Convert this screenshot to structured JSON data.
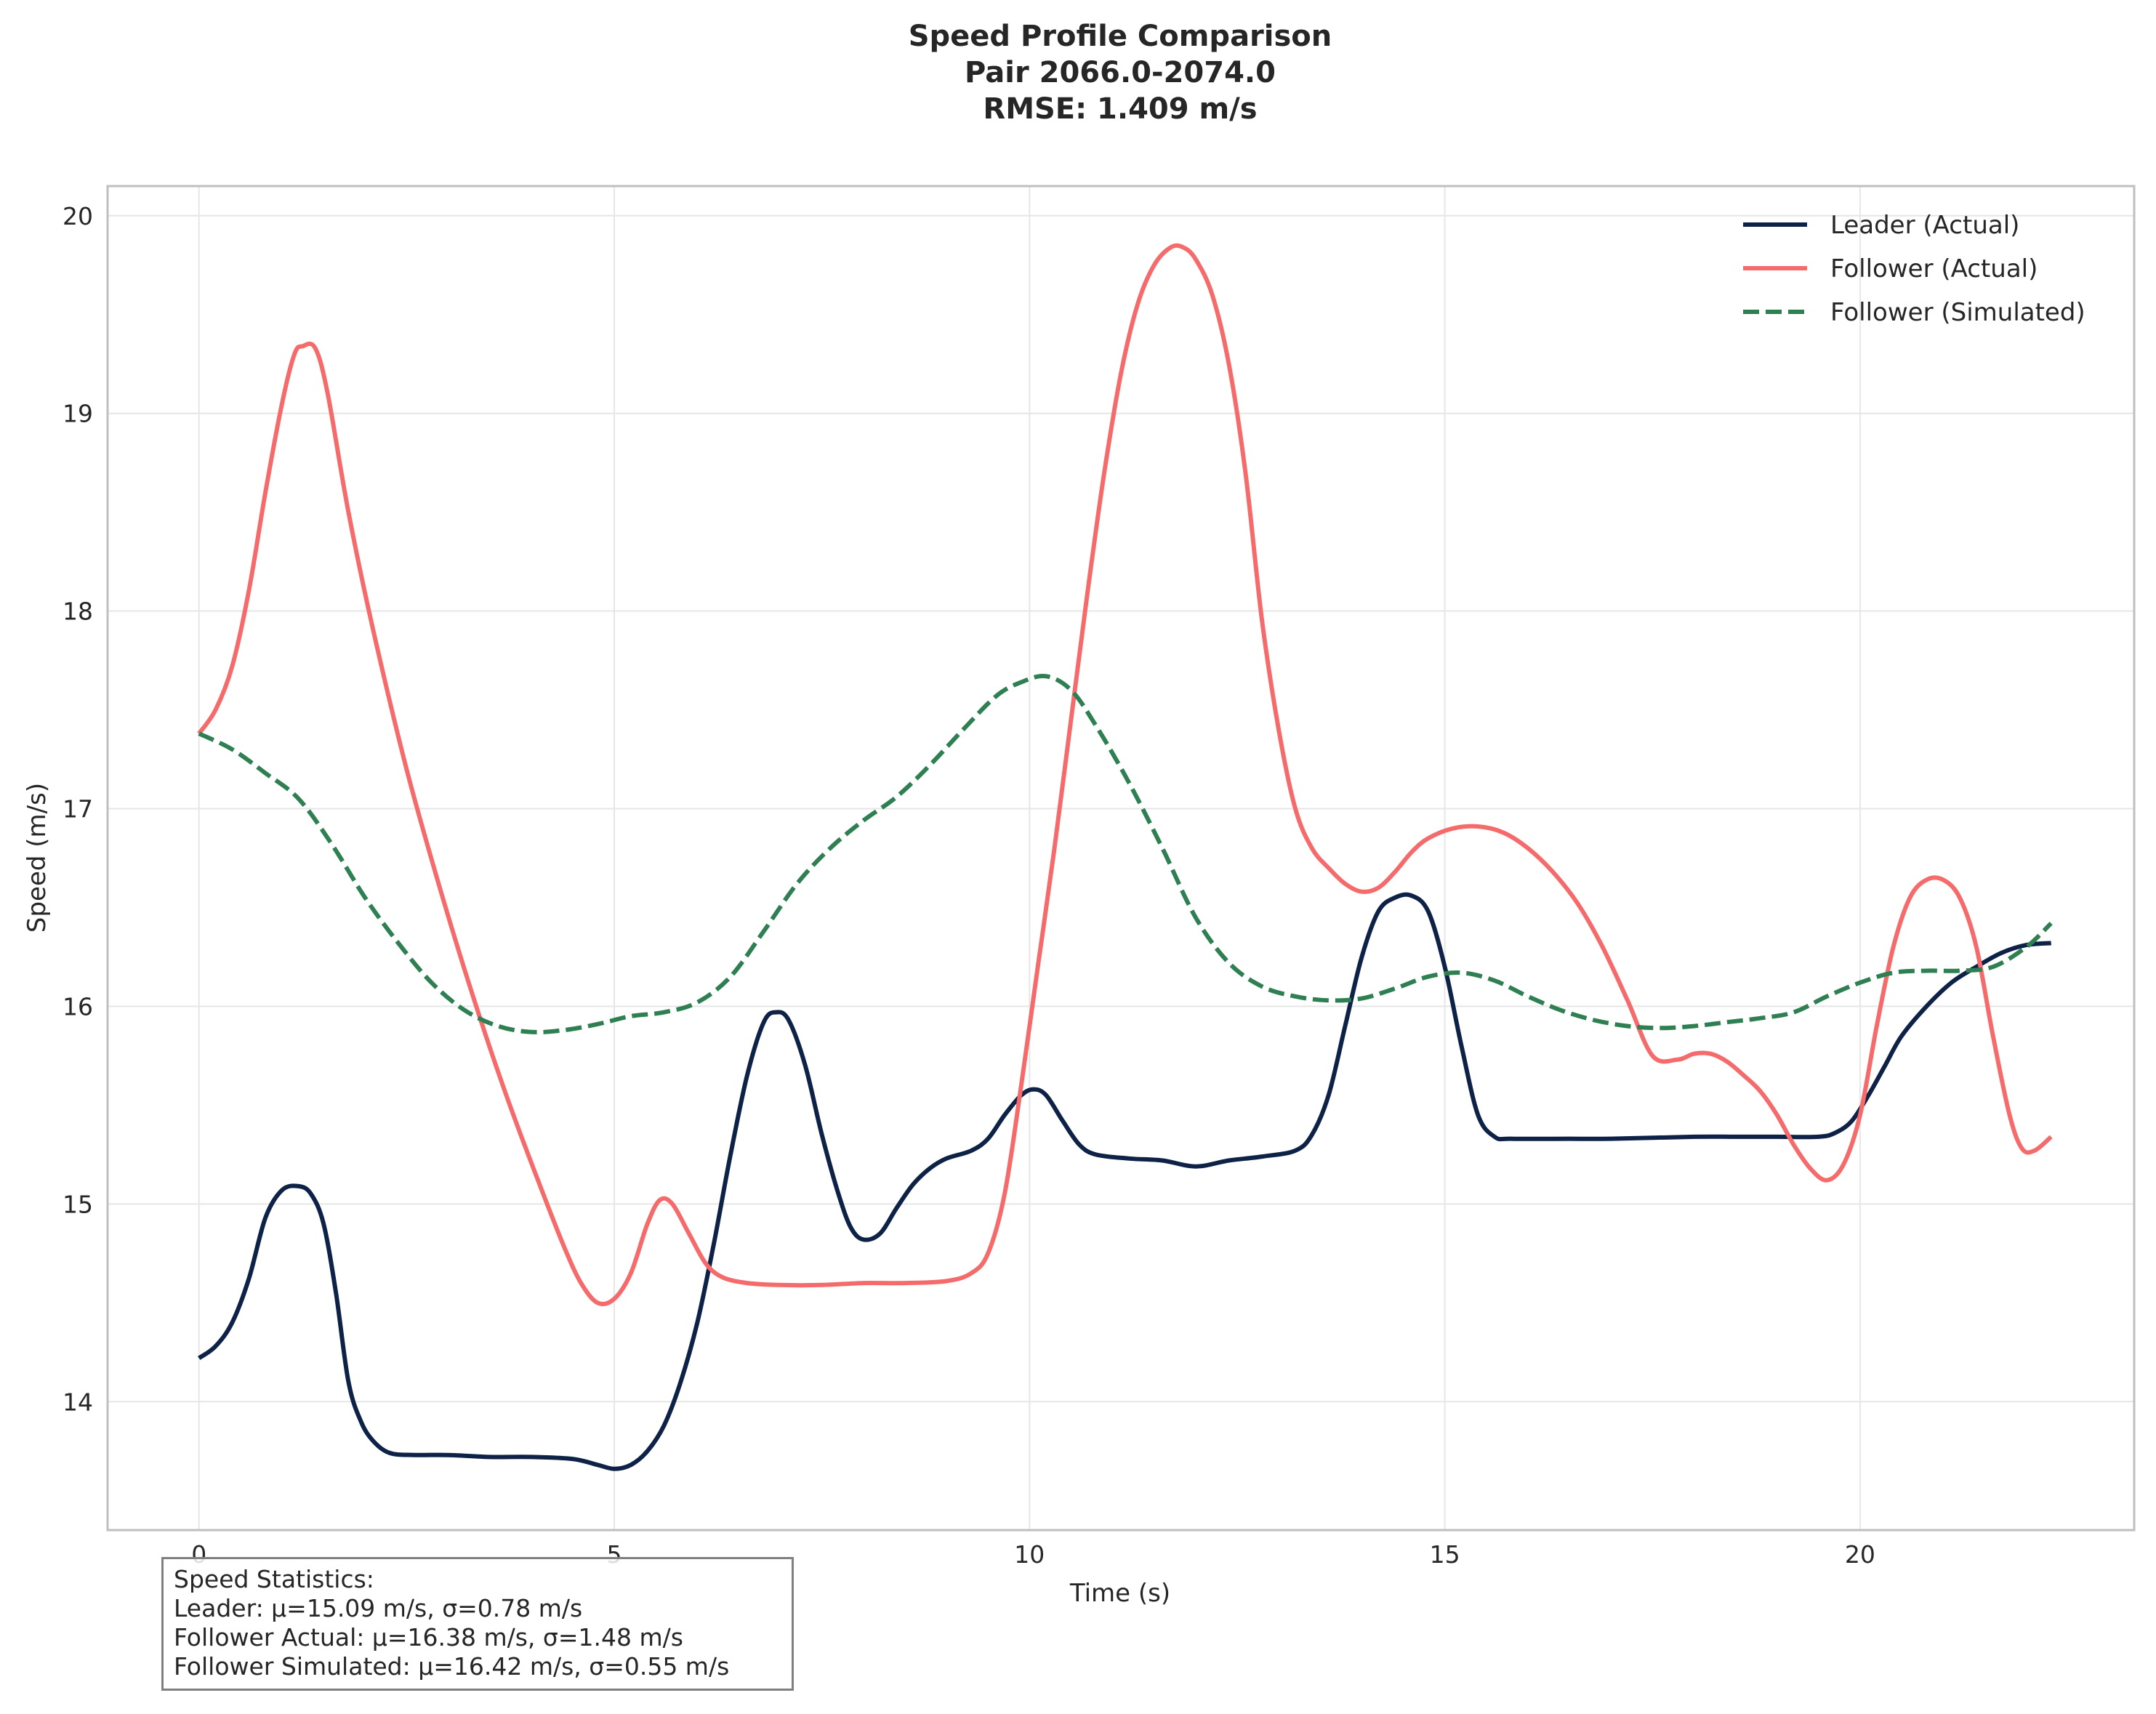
{
  "chart_data": {
    "type": "line",
    "title": [
      "Speed Profile Comparison",
      "Pair 2066.0-2074.0",
      "RMSE: 1.409 m/s"
    ],
    "xlabel": "Time (s)",
    "ylabel": "Speed (m/s)",
    "xlim": [
      -1.1,
      23.3
    ],
    "ylim": [
      13.35,
      20.15
    ],
    "xticks": [
      0,
      5,
      10,
      15,
      20
    ],
    "yticks": [
      14,
      15,
      16,
      17,
      18,
      19,
      20
    ],
    "grid": true,
    "legend_position": "top-right",
    "series": [
      {
        "name": "Leader (Actual)",
        "color": "#0d2246",
        "style": "solid",
        "points": [
          [
            0,
            14.22
          ],
          [
            0.2,
            14.28
          ],
          [
            0.4,
            14.4
          ],
          [
            0.6,
            14.62
          ],
          [
            0.8,
            14.93
          ],
          [
            1.0,
            15.07
          ],
          [
            1.2,
            15.09
          ],
          [
            1.35,
            15.05
          ],
          [
            1.5,
            14.9
          ],
          [
            1.65,
            14.55
          ],
          [
            1.8,
            14.1
          ],
          [
            1.95,
            13.9
          ],
          [
            2.1,
            13.8
          ],
          [
            2.3,
            13.74
          ],
          [
            2.6,
            13.73
          ],
          [
            3.0,
            13.73
          ],
          [
            3.5,
            13.72
          ],
          [
            4.0,
            13.72
          ],
          [
            4.5,
            13.71
          ],
          [
            4.8,
            13.68
          ],
          [
            5.0,
            13.66
          ],
          [
            5.2,
            13.68
          ],
          [
            5.4,
            13.75
          ],
          [
            5.6,
            13.88
          ],
          [
            5.8,
            14.1
          ],
          [
            6.0,
            14.4
          ],
          [
            6.2,
            14.8
          ],
          [
            6.4,
            15.25
          ],
          [
            6.6,
            15.65
          ],
          [
            6.8,
            15.92
          ],
          [
            6.95,
            15.97
          ],
          [
            7.1,
            15.93
          ],
          [
            7.3,
            15.7
          ],
          [
            7.5,
            15.35
          ],
          [
            7.7,
            15.05
          ],
          [
            7.85,
            14.88
          ],
          [
            8.0,
            14.82
          ],
          [
            8.2,
            14.85
          ],
          [
            8.4,
            14.98
          ],
          [
            8.6,
            15.1
          ],
          [
            8.8,
            15.18
          ],
          [
            9.0,
            15.23
          ],
          [
            9.3,
            15.27
          ],
          [
            9.5,
            15.33
          ],
          [
            9.7,
            15.45
          ],
          [
            9.9,
            15.55
          ],
          [
            10.05,
            15.58
          ],
          [
            10.2,
            15.55
          ],
          [
            10.4,
            15.42
          ],
          [
            10.6,
            15.3
          ],
          [
            10.8,
            15.25
          ],
          [
            11.2,
            15.23
          ],
          [
            11.6,
            15.22
          ],
          [
            12.0,
            15.19
          ],
          [
            12.4,
            15.22
          ],
          [
            12.8,
            15.24
          ],
          [
            13.2,
            15.27
          ],
          [
            13.4,
            15.35
          ],
          [
            13.6,
            15.55
          ],
          [
            13.8,
            15.9
          ],
          [
            14.0,
            16.25
          ],
          [
            14.2,
            16.48
          ],
          [
            14.4,
            16.55
          ],
          [
            14.6,
            16.56
          ],
          [
            14.8,
            16.48
          ],
          [
            15.0,
            16.2
          ],
          [
            15.2,
            15.8
          ],
          [
            15.4,
            15.45
          ],
          [
            15.6,
            15.34
          ],
          [
            15.8,
            15.33
          ],
          [
            16.5,
            15.33
          ],
          [
            17.0,
            15.33
          ],
          [
            18.0,
            15.34
          ],
          [
            18.5,
            15.34
          ],
          [
            19.0,
            15.34
          ],
          [
            19.5,
            15.34
          ],
          [
            19.7,
            15.36
          ],
          [
            19.9,
            15.42
          ],
          [
            20.1,
            15.55
          ],
          [
            20.3,
            15.7
          ],
          [
            20.5,
            15.85
          ],
          [
            20.8,
            16.0
          ],
          [
            21.1,
            16.12
          ],
          [
            21.4,
            16.2
          ],
          [
            21.7,
            16.27
          ],
          [
            22.0,
            16.31
          ],
          [
            22.3,
            16.32
          ]
        ]
      },
      {
        "name": "Follower (Actual)",
        "color": "#f56b6b",
        "style": "solid",
        "points": [
          [
            0,
            17.38
          ],
          [
            0.2,
            17.5
          ],
          [
            0.4,
            17.72
          ],
          [
            0.6,
            18.1
          ],
          [
            0.8,
            18.6
          ],
          [
            1.0,
            19.05
          ],
          [
            1.15,
            19.3
          ],
          [
            1.25,
            19.34
          ],
          [
            1.4,
            19.33
          ],
          [
            1.55,
            19.1
          ],
          [
            1.8,
            18.5
          ],
          [
            2.1,
            17.9
          ],
          [
            2.5,
            17.2
          ],
          [
            2.9,
            16.6
          ],
          [
            3.3,
            16.05
          ],
          [
            3.7,
            15.55
          ],
          [
            4.1,
            15.1
          ],
          [
            4.4,
            14.78
          ],
          [
            4.6,
            14.6
          ],
          [
            4.8,
            14.5
          ],
          [
            5.0,
            14.52
          ],
          [
            5.2,
            14.65
          ],
          [
            5.4,
            14.9
          ],
          [
            5.55,
            15.02
          ],
          [
            5.7,
            15.0
          ],
          [
            5.9,
            14.85
          ],
          [
            6.1,
            14.7
          ],
          [
            6.3,
            14.63
          ],
          [
            6.6,
            14.6
          ],
          [
            7.0,
            14.59
          ],
          [
            7.5,
            14.59
          ],
          [
            8.0,
            14.6
          ],
          [
            8.5,
            14.6
          ],
          [
            9.0,
            14.61
          ],
          [
            9.3,
            14.65
          ],
          [
            9.5,
            14.75
          ],
          [
            9.7,
            15.05
          ],
          [
            9.9,
            15.6
          ],
          [
            10.1,
            16.2
          ],
          [
            10.3,
            16.8
          ],
          [
            10.5,
            17.45
          ],
          [
            10.7,
            18.1
          ],
          [
            10.9,
            18.7
          ],
          [
            11.1,
            19.2
          ],
          [
            11.3,
            19.55
          ],
          [
            11.5,
            19.75
          ],
          [
            11.7,
            19.84
          ],
          [
            11.85,
            19.84
          ],
          [
            12.0,
            19.78
          ],
          [
            12.2,
            19.6
          ],
          [
            12.4,
            19.25
          ],
          [
            12.6,
            18.7
          ],
          [
            12.8,
            17.95
          ],
          [
            13.0,
            17.4
          ],
          [
            13.2,
            17.0
          ],
          [
            13.4,
            16.8
          ],
          [
            13.6,
            16.7
          ],
          [
            13.8,
            16.62
          ],
          [
            14.0,
            16.58
          ],
          [
            14.2,
            16.6
          ],
          [
            14.4,
            16.68
          ],
          [
            14.6,
            16.78
          ],
          [
            14.8,
            16.85
          ],
          [
            15.1,
            16.9
          ],
          [
            15.4,
            16.91
          ],
          [
            15.7,
            16.88
          ],
          [
            16.0,
            16.8
          ],
          [
            16.3,
            16.68
          ],
          [
            16.6,
            16.52
          ],
          [
            16.9,
            16.3
          ],
          [
            17.2,
            16.03
          ],
          [
            17.5,
            15.75
          ],
          [
            17.8,
            15.73
          ],
          [
            18.0,
            15.76
          ],
          [
            18.2,
            15.76
          ],
          [
            18.4,
            15.72
          ],
          [
            18.6,
            15.65
          ],
          [
            18.8,
            15.57
          ],
          [
            19.0,
            15.45
          ],
          [
            19.2,
            15.3
          ],
          [
            19.4,
            15.18
          ],
          [
            19.6,
            15.12
          ],
          [
            19.8,
            15.2
          ],
          [
            20.0,
            15.45
          ],
          [
            20.2,
            15.9
          ],
          [
            20.4,
            16.3
          ],
          [
            20.6,
            16.55
          ],
          [
            20.8,
            16.64
          ],
          [
            21.0,
            16.64
          ],
          [
            21.2,
            16.55
          ],
          [
            21.4,
            16.3
          ],
          [
            21.6,
            15.85
          ],
          [
            21.8,
            15.45
          ],
          [
            21.95,
            15.28
          ],
          [
            22.1,
            15.27
          ],
          [
            22.3,
            15.34
          ]
        ]
      },
      {
        "name": "Follower (Simulated)",
        "color": "#2e8052",
        "style": "dashed",
        "points": [
          [
            0,
            17.38
          ],
          [
            0.4,
            17.3
          ],
          [
            0.8,
            17.18
          ],
          [
            1.2,
            17.05
          ],
          [
            1.6,
            16.82
          ],
          [
            2.0,
            16.55
          ],
          [
            2.4,
            16.32
          ],
          [
            2.8,
            16.12
          ],
          [
            3.2,
            15.98
          ],
          [
            3.6,
            15.9
          ],
          [
            4.0,
            15.87
          ],
          [
            4.4,
            15.88
          ],
          [
            4.8,
            15.91
          ],
          [
            5.2,
            15.95
          ],
          [
            5.6,
            15.97
          ],
          [
            6.0,
            16.02
          ],
          [
            6.4,
            16.15
          ],
          [
            6.8,
            16.38
          ],
          [
            7.2,
            16.62
          ],
          [
            7.6,
            16.8
          ],
          [
            8.0,
            16.94
          ],
          [
            8.4,
            17.06
          ],
          [
            8.8,
            17.22
          ],
          [
            9.2,
            17.4
          ],
          [
            9.6,
            17.57
          ],
          [
            9.9,
            17.64
          ],
          [
            10.2,
            17.67
          ],
          [
            10.5,
            17.6
          ],
          [
            10.8,
            17.42
          ],
          [
            11.2,
            17.13
          ],
          [
            11.6,
            16.8
          ],
          [
            12.0,
            16.45
          ],
          [
            12.4,
            16.22
          ],
          [
            12.8,
            16.1
          ],
          [
            13.2,
            16.05
          ],
          [
            13.6,
            16.03
          ],
          [
            14.0,
            16.04
          ],
          [
            14.4,
            16.09
          ],
          [
            14.8,
            16.15
          ],
          [
            15.2,
            16.17
          ],
          [
            15.6,
            16.13
          ],
          [
            16.0,
            16.05
          ],
          [
            16.4,
            15.98
          ],
          [
            16.8,
            15.93
          ],
          [
            17.2,
            15.9
          ],
          [
            17.6,
            15.89
          ],
          [
            18.0,
            15.9
          ],
          [
            18.4,
            15.92
          ],
          [
            18.8,
            15.94
          ],
          [
            19.2,
            15.97
          ],
          [
            19.6,
            16.05
          ],
          [
            20.0,
            16.12
          ],
          [
            20.4,
            16.17
          ],
          [
            20.8,
            16.18
          ],
          [
            21.2,
            16.18
          ],
          [
            21.6,
            16.2
          ],
          [
            22.0,
            16.3
          ],
          [
            22.3,
            16.42
          ]
        ]
      }
    ]
  },
  "stats": {
    "heading": "Speed Statistics:",
    "leader": "Leader: μ=15.09 m/s, σ=0.78 m/s",
    "follower_actual": "Follower Actual: μ=16.38 m/s, σ=1.48 m/s",
    "follower_simulated": "Follower Simulated: μ=16.42 m/s, σ=0.55 m/s"
  }
}
